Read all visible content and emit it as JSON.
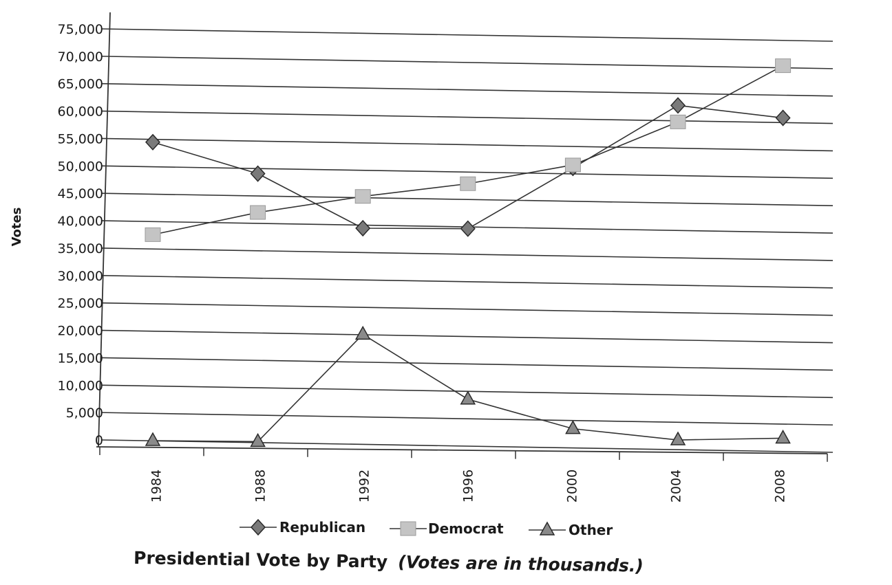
{
  "chart_data": {
    "type": "line",
    "title": "Presidential Vote by Party",
    "subtitle": "(Votes are in thousands.)",
    "xlabel": "",
    "ylabel": "Votes",
    "categories": [
      "1984",
      "1988",
      "1992",
      "1996",
      "2000",
      "2004",
      "2008"
    ],
    "y_ticks": [
      "0",
      "5,000",
      "10,000",
      "15,000",
      "20,000",
      "25,000",
      "30,000",
      "35,000",
      "40,000",
      "45,000",
      "50,000",
      "55,000",
      "60,000",
      "65,000",
      "70,000",
      "75,000"
    ],
    "ylim": [
      0,
      75000
    ],
    "grid": true,
    "legend_position": "bottom",
    "series": [
      {
        "name": "Republican",
        "marker": "diamond",
        "color": "#7a7a7a",
        "values": [
          54455,
          48886,
          39104,
          39198,
          50456,
          62040,
          59934
        ]
      },
      {
        "name": "Democrat",
        "marker": "square",
        "color": "#c4c4c4",
        "values": [
          37577,
          41809,
          44909,
          47402,
          50999,
          59028,
          69456
        ]
      },
      {
        "name": "Other",
        "marker": "triangle",
        "color": "#8a8a8a",
        "values": [
          0,
          0,
          19742,
          8085,
          2883,
          1000,
          1500
        ]
      }
    ]
  }
}
